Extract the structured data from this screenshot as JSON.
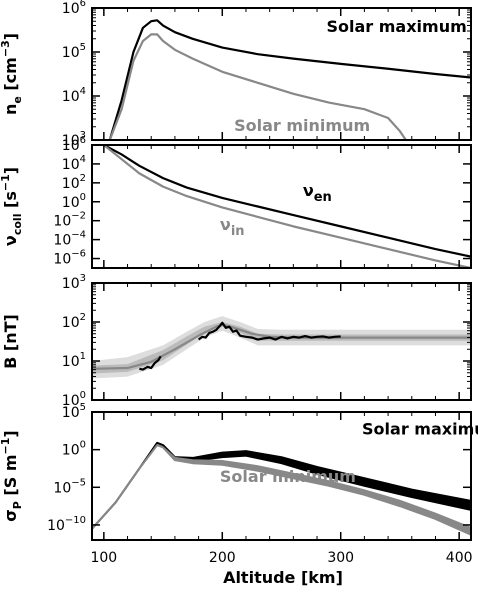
{
  "figure": {
    "xlabel": "Altitude [km]",
    "x_ticks": [
      "100",
      "200",
      "300",
      "400"
    ],
    "xlim": [
      90,
      410
    ]
  },
  "chart_data": [
    {
      "type": "line",
      "ylabel_main": "n",
      "ylabel_sub": "e",
      "ylabel_unit": " [cm",
      "ylabel_unit_sup": "−3",
      "ylabel_close": "]",
      "ylim": [
        3,
        6
      ],
      "y_log": true,
      "y_ticks": [
        {
          "exp": 3,
          "label": "10",
          "sup": "3"
        },
        {
          "exp": 4,
          "label": "10",
          "sup": "4"
        },
        {
          "exp": 5,
          "label": "10",
          "sup": "5"
        },
        {
          "exp": 6,
          "label": "10",
          "sup": "6"
        }
      ],
      "annotations": [
        {
          "text": "Solar maximum",
          "color": "#000000",
          "x": 288,
          "y": 5.45
        },
        {
          "text": "Solar minimum",
          "color": "#888888",
          "x": 210,
          "y": 3.2
        }
      ],
      "series": [
        {
          "color": "#000000",
          "x": [
            105,
            115,
            125,
            133,
            140,
            145,
            150,
            160,
            175,
            200,
            230,
            260,
            300,
            340,
            380,
            410
          ],
          "y": [
            3.0,
            3.9,
            5.0,
            5.55,
            5.7,
            5.72,
            5.6,
            5.45,
            5.3,
            5.1,
            4.95,
            4.85,
            4.73,
            4.62,
            4.5,
            4.42
          ]
        },
        {
          "color": "#888888",
          "x": [
            105,
            115,
            125,
            133,
            140,
            145,
            150,
            160,
            175,
            200,
            230,
            260,
            290,
            320,
            340,
            350,
            355
          ],
          "y": [
            3.0,
            3.7,
            4.8,
            5.25,
            5.4,
            5.4,
            5.25,
            5.05,
            4.85,
            4.55,
            4.3,
            4.05,
            3.85,
            3.7,
            3.5,
            3.2,
            3.0
          ]
        }
      ]
    },
    {
      "type": "line",
      "ylabel_main": "ν",
      "ylabel_sub": "coll",
      "ylabel_unit": " [s",
      "ylabel_unit_sup": "−1",
      "ylabel_close": "]",
      "ylim": [
        -7,
        6
      ],
      "y_log": true,
      "y_ticks": [
        {
          "exp": -6,
          "label": "10",
          "sup": "−6"
        },
        {
          "exp": -4,
          "label": "10",
          "sup": "−4"
        },
        {
          "exp": -2,
          "label": "10",
          "sup": "−2"
        },
        {
          "exp": 0,
          "label": "10",
          "sup": "0"
        },
        {
          "exp": 2,
          "label": "10",
          "sup": "2"
        },
        {
          "exp": 4,
          "label": "10",
          "sup": "4"
        },
        {
          "exp": 6,
          "label": "10",
          "sup": "6"
        }
      ],
      "annotations": [
        {
          "text": "ν",
          "sub": "en",
          "color": "#000000",
          "x": 268,
          "y": 0.6
        },
        {
          "text": "ν",
          "sub": "in",
          "color": "#888888",
          "x": 198,
          "y": -3.0
        }
      ],
      "series": [
        {
          "color": "#000000",
          "x": [
            100,
            115,
            130,
            150,
            170,
            200,
            230,
            260,
            300,
            340,
            380,
            410
          ],
          "y": [
            6.0,
            5.0,
            3.8,
            2.5,
            1.5,
            0.4,
            -0.5,
            -1.4,
            -2.6,
            -3.8,
            -5.0,
            -5.8
          ]
        },
        {
          "color": "#888888",
          "x": [
            100,
            115,
            130,
            150,
            170,
            200,
            230,
            260,
            300,
            340,
            380,
            410
          ],
          "y": [
            6.0,
            4.5,
            3.0,
            1.6,
            0.6,
            -0.6,
            -1.6,
            -2.6,
            -3.8,
            -5.0,
            -6.2,
            -7.0
          ]
        }
      ]
    },
    {
      "type": "line",
      "ylabel_main": "B [nT]",
      "ylim": [
        0,
        3
      ],
      "y_log": true,
      "y_ticks": [
        {
          "exp": 0,
          "label": "10",
          "sup": "0"
        },
        {
          "exp": 1,
          "label": "10",
          "sup": "1"
        },
        {
          "exp": 2,
          "label": "10",
          "sup": "2"
        },
        {
          "exp": 3,
          "label": "10",
          "sup": "3"
        }
      ],
      "bands": [
        {
          "color": "#dddddd",
          "x": [
            90,
            120,
            150,
            170,
            185,
            200,
            215,
            230,
            250,
            300,
            410
          ],
          "lo": [
            0.55,
            0.6,
            0.9,
            1.3,
            1.6,
            1.78,
            1.6,
            1.4,
            1.4,
            1.4,
            1.4
          ],
          "hi": [
            1.0,
            1.1,
            1.4,
            1.75,
            2.0,
            2.15,
            2.0,
            1.82,
            1.8,
            1.8,
            1.8
          ]
        },
        {
          "color": "#bbbbbb",
          "x": [
            90,
            120,
            150,
            170,
            185,
            200,
            215,
            230,
            250,
            300,
            410
          ],
          "lo": [
            0.68,
            0.72,
            1.02,
            1.42,
            1.72,
            1.88,
            1.72,
            1.52,
            1.52,
            1.52,
            1.52
          ],
          "hi": [
            0.88,
            0.92,
            1.28,
            1.63,
            1.88,
            2.0,
            1.88,
            1.7,
            1.68,
            1.68,
            1.68
          ]
        }
      ],
      "series": [
        {
          "color": "#888888",
          "x": [
            90,
            120,
            140,
            160,
            180,
            195,
            200,
            210,
            225,
            240,
            260,
            300,
            410
          ],
          "y": [
            0.8,
            0.82,
            0.98,
            1.3,
            1.65,
            1.88,
            1.93,
            1.85,
            1.7,
            1.62,
            1.6,
            1.6,
            1.6
          ]
        },
        {
          "color": "#000000",
          "x": [
            130,
            133,
            137,
            140,
            143,
            146,
            148
          ],
          "y": [
            0.8,
            0.78,
            0.85,
            0.82,
            0.95,
            1.02,
            1.12
          ]
        },
        {
          "color": "#000000",
          "x": [
            180,
            183,
            186,
            189,
            192,
            195,
            198,
            200,
            203,
            206,
            209,
            212,
            215,
            220,
            225,
            230,
            235,
            240,
            245,
            250,
            255,
            260,
            265,
            270,
            275,
            280,
            285,
            290,
            295,
            300
          ],
          "y": [
            1.55,
            1.62,
            1.6,
            1.72,
            1.75,
            1.8,
            1.9,
            1.98,
            1.85,
            1.88,
            1.75,
            1.78,
            1.65,
            1.62,
            1.6,
            1.55,
            1.58,
            1.6,
            1.55,
            1.62,
            1.58,
            1.62,
            1.6,
            1.64,
            1.6,
            1.62,
            1.63,
            1.6,
            1.62,
            1.63
          ]
        }
      ]
    },
    {
      "type": "area",
      "ylabel_main": "σ",
      "ylabel_sub": "P",
      "ylabel_unit": " [S m",
      "ylabel_unit_sup": "−1",
      "ylabel_close": "]",
      "ylim": [
        -12,
        5
      ],
      "y_log": true,
      "y_ticks": [
        {
          "exp": -10,
          "label": "10",
          "sup": "−10"
        },
        {
          "exp": -5,
          "label": "10",
          "sup": "−5"
        },
        {
          "exp": 0,
          "label": "10",
          "sup": "0"
        },
        {
          "exp": 5,
          "label": "10",
          "sup": "5"
        }
      ],
      "annotations": [
        {
          "text": "Solar maximum",
          "color": "#000000",
          "x": 318,
          "y": 2.0
        },
        {
          "text": "Solar minimum",
          "color": "#888888",
          "x": 198,
          "y": -4.3
        }
      ],
      "series": [
        {
          "name_ref": "max",
          "color": "#000000",
          "x": [
            90,
            110,
            130,
            145,
            150,
            160,
            175,
            200,
            220,
            250,
            280,
            320,
            360,
            410
          ],
          "lo": [
            -10.5,
            -7.0,
            -2.5,
            0.9,
            0.6,
            -1.0,
            -1.5,
            -1.0,
            -0.8,
            -1.8,
            -3.2,
            -4.8,
            -6.3,
            -8.0
          ],
          "hi": [
            -10.5,
            -7.0,
            -2.5,
            0.9,
            0.6,
            -1.0,
            -1.1,
            -0.4,
            -0.2,
            -1.0,
            -2.3,
            -3.8,
            -5.3,
            -6.8
          ]
        },
        {
          "name_ref": "min",
          "color": "#888888",
          "x": [
            90,
            110,
            130,
            145,
            150,
            160,
            175,
            200,
            230,
            260,
            290,
            320,
            350,
            380,
            410
          ],
          "lo": [
            -10.5,
            -7.0,
            -2.5,
            0.6,
            0.3,
            -1.4,
            -1.8,
            -2.0,
            -2.8,
            -3.8,
            -4.8,
            -6.0,
            -7.5,
            -9.2,
            -11.3
          ],
          "hi": [
            -10.5,
            -7.0,
            -2.5,
            0.6,
            0.3,
            -1.1,
            -1.4,
            -1.5,
            -2.2,
            -3.2,
            -4.2,
            -5.4,
            -6.8,
            -8.5,
            -10.4
          ]
        }
      ]
    }
  ]
}
